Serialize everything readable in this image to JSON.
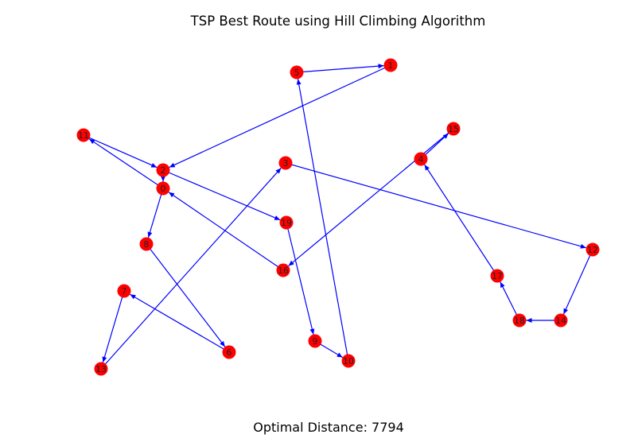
{
  "title": "TSP Best Route using Hill Climbing Algorithm",
  "caption": "Optimal Distance: 7794",
  "colors": {
    "node": "#ff0000",
    "edge": "#0000ff",
    "label": "#222222"
  },
  "nodes": [
    {
      "id": "0"
    },
    {
      "id": "1"
    },
    {
      "id": "2"
    },
    {
      "id": "3"
    },
    {
      "id": "4"
    },
    {
      "id": "5"
    },
    {
      "id": "6"
    },
    {
      "id": "7"
    },
    {
      "id": "8"
    },
    {
      "id": "9"
    },
    {
      "id": "10"
    },
    {
      "id": "11"
    },
    {
      "id": "12"
    },
    {
      "id": "13"
    },
    {
      "id": "14"
    },
    {
      "id": "15"
    },
    {
      "id": "16"
    },
    {
      "id": "17"
    },
    {
      "id": "18"
    },
    {
      "id": "19"
    }
  ],
  "edges": [
    [
      "0",
      "8"
    ],
    [
      "8",
      "6"
    ],
    [
      "6",
      "7"
    ],
    [
      "7",
      "13"
    ],
    [
      "13",
      "3"
    ],
    [
      "3",
      "12"
    ],
    [
      "12",
      "14"
    ],
    [
      "14",
      "18"
    ],
    [
      "18",
      "17"
    ],
    [
      "17",
      "4"
    ],
    [
      "4",
      "15"
    ],
    [
      "15",
      "16"
    ],
    [
      "16",
      "0"
    ],
    [
      "0",
      "11"
    ],
    [
      "11",
      "2"
    ],
    [
      "2",
      "19"
    ],
    [
      "19",
      "9"
    ],
    [
      "9",
      "10"
    ],
    [
      "10",
      "5"
    ],
    [
      "5",
      "1"
    ],
    [
      "1",
      "2"
    ],
    [
      "2",
      "0"
    ]
  ]
}
